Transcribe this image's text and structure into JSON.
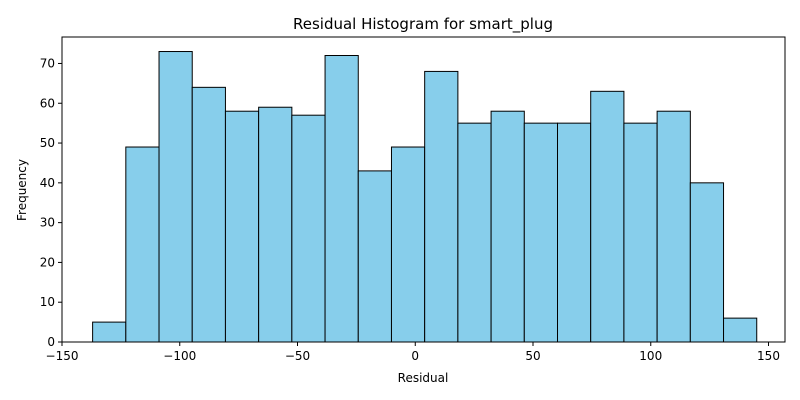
{
  "chart_data": {
    "type": "bar",
    "title": "Residual Histogram for smart_plug",
    "xlabel": "Residual",
    "ylabel": "Frequency",
    "bar_color": "#87CEEB",
    "edge_color": "#000000",
    "xlim": [
      -150,
      157
    ],
    "ylim": [
      0,
      76.65
    ],
    "xticks": [
      -150,
      -100,
      -50,
      0,
      50,
      100,
      150
    ],
    "yticks": [
      0,
      10,
      20,
      30,
      40,
      50,
      60,
      70
    ],
    "bin_start": -137,
    "bin_width": 14.1,
    "values": [
      5,
      49,
      73,
      64,
      58,
      59,
      57,
      72,
      43,
      49,
      68,
      55,
      58,
      55,
      55,
      63,
      55,
      58,
      40,
      6
    ]
  }
}
